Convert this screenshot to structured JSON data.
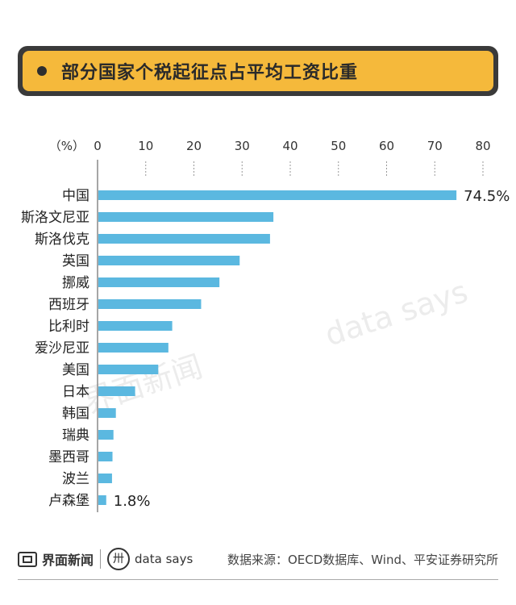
{
  "title": "部分国家个税起征点占平均工资比重",
  "chart_data": {
    "type": "bar",
    "orientation": "horizontal",
    "unit_label": "（%）",
    "xlim": [
      0,
      80
    ],
    "ticks": [
      0,
      10,
      20,
      30,
      40,
      50,
      60,
      70,
      80
    ],
    "categories": [
      "中国",
      "斯洛文尼亚",
      "斯洛伐克",
      "英国",
      "挪威",
      "西班牙",
      "比利时",
      "爱沙尼亚",
      "美国",
      "日本",
      "韩国",
      "瑞典",
      "墨西哥",
      "波兰",
      "卢森堡"
    ],
    "values": [
      74.5,
      36.5,
      35.8,
      29.5,
      25.3,
      21.5,
      15.5,
      14.7,
      12.6,
      7.8,
      3.8,
      3.3,
      3.1,
      3.0,
      1.8
    ],
    "data_labels": [
      {
        "index": 0,
        "text": "74.5%"
      },
      {
        "index": 14,
        "text": "1.8%"
      }
    ],
    "bar_color": "#5bb8e0"
  },
  "watermark": {
    "left": "界面新闻",
    "right": "data says"
  },
  "footer": {
    "logo_jiemian": "界面新闻",
    "logo_datasays": "data says",
    "datasays_icon": "卅",
    "source": "数据来源：OECD数据库、Wind、平安证券研究所"
  }
}
